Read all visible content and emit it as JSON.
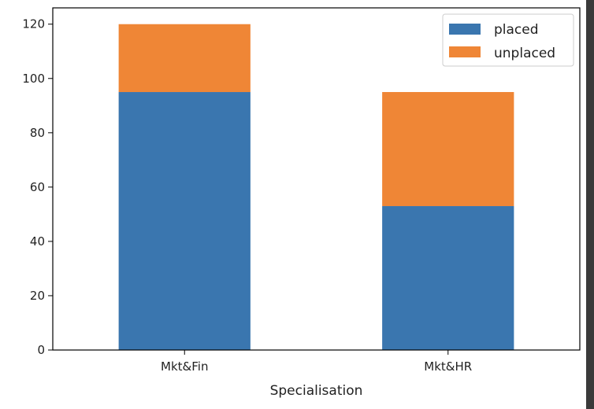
{
  "chart_data": {
    "type": "bar",
    "stacked": true,
    "title": "",
    "xlabel": "Specialisation",
    "ylabel": "",
    "categories": [
      "Mkt&Fin",
      "Mkt&HR"
    ],
    "series": [
      {
        "name": "placed",
        "values": [
          95,
          53
        ],
        "color": "#3a76af"
      },
      {
        "name": "unplaced",
        "values": [
          25,
          42
        ],
        "color": "#ef8636"
      }
    ],
    "ylim": [
      0,
      126
    ],
    "yticks": [
      "0",
      "20",
      "40",
      "60",
      "80",
      "100",
      "120"
    ],
    "ytick_values": [
      0,
      20,
      40,
      60,
      80,
      100,
      120
    ],
    "grid": false,
    "legend": "top-right"
  }
}
